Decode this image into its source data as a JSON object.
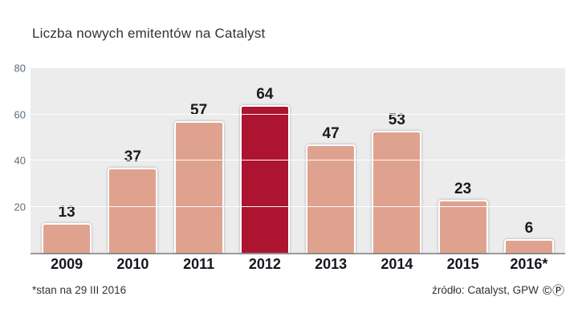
{
  "title": "Liczba nowych emitentów na Catalyst",
  "footer": {
    "note": "*stan na 29 III 2016",
    "source": "źródło: Catalyst, GPW",
    "copyright": "©Ⓟ"
  },
  "chart_data": {
    "type": "bar",
    "title": "Liczba nowych emitentów na Catalyst",
    "categories": [
      "2009",
      "2010",
      "2011",
      "2012",
      "2013",
      "2014",
      "2015",
      "2016*"
    ],
    "values": [
      13,
      37,
      57,
      64,
      47,
      53,
      23,
      6
    ],
    "highlight_index": 3,
    "xlabel": "",
    "ylabel": "",
    "ylim": [
      0,
      80
    ],
    "yticks": [
      20,
      40,
      60,
      80
    ],
    "grid": true,
    "legend": false,
    "colors": {
      "bar": "#dfa28f",
      "highlight": "#ad1430",
      "plot_background": "#ececec",
      "axis_label": "#5a6b7c",
      "value_label": "#1a1a1a"
    }
  }
}
